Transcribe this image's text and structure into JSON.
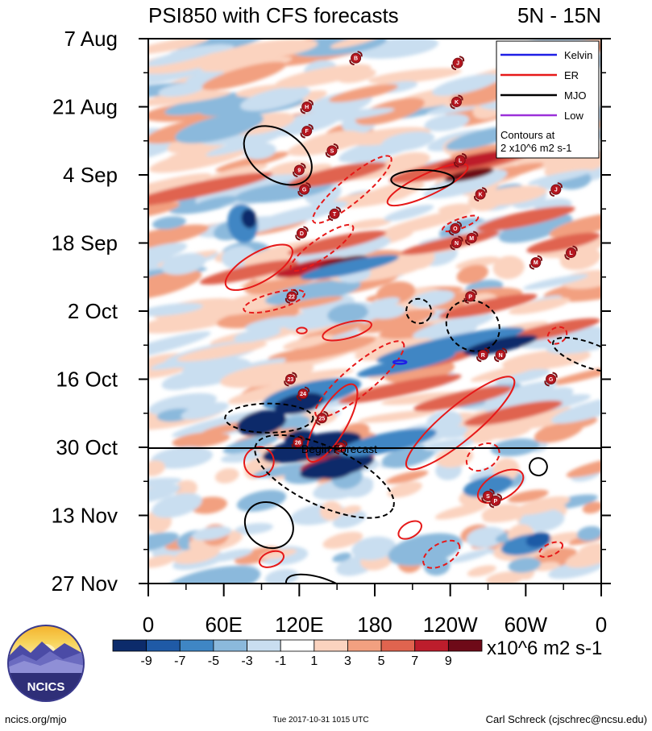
{
  "chart_data": {
    "type": "heatmap",
    "title": "PSI850 with CFS forecasts",
    "region": "5N - 15N",
    "ylabel_ticks": [
      "7 Aug",
      "21 Aug",
      "4 Sep",
      "18 Sep",
      "2 Oct",
      "16 Oct",
      "30 Oct",
      "13 Nov",
      "27 Nov"
    ],
    "xlabel_ticks": [
      "0",
      "60E",
      "120E",
      "180",
      "120W",
      "60W",
      "0"
    ],
    "forecast_label": "Begin Forecast",
    "legend": [
      {
        "label": "Kelvin",
        "color": "#1f1fe6"
      },
      {
        "label": "ER",
        "color": "#e61919"
      },
      {
        "label": "MJO",
        "color": "#000000"
      },
      {
        "label": "Low",
        "color": "#9b30d9"
      }
    ],
    "contour_note_1": "Contours at",
    "contour_note_2": "2 x10^6 m2 s-1",
    "colorbar": {
      "labels": [
        "-9",
        "-7",
        "-5",
        "-3",
        "-1",
        "1",
        "3",
        "5",
        "7",
        "9"
      ],
      "colors": [
        "#0c2b6b",
        "#1f5aa6",
        "#3f86c4",
        "#8bb9dc",
        "#c9def0",
        "#ffffff",
        "#fbd3bf",
        "#f2a080",
        "#e0644f",
        "#bd1d2c",
        "#6e0a18"
      ],
      "units": "x10^6 m2 s-1"
    },
    "storms": [
      {
        "id": "B",
        "lon": 165,
        "day": 4
      },
      {
        "id": "J",
        "lon": 246,
        "day": 5
      },
      {
        "id": "K",
        "lon": 245,
        "day": 13
      },
      {
        "id": "H",
        "lon": 126,
        "day": 14
      },
      {
        "id": "F",
        "lon": 126,
        "day": 19
      },
      {
        "id": "S",
        "lon": 146,
        "day": 23
      },
      {
        "id": "L",
        "lon": 248,
        "day": 25
      },
      {
        "id": "9",
        "lon": 120,
        "day": 27
      },
      {
        "id": "G",
        "lon": 124,
        "day": 31
      },
      {
        "id": "K",
        "lon": 264,
        "day": 32
      },
      {
        "id": "J",
        "lon": 324,
        "day": 31
      },
      {
        "id": "T",
        "lon": 148,
        "day": 36
      },
      {
        "id": "O",
        "lon": 244,
        "day": 39
      },
      {
        "id": "D",
        "lon": 122,
        "day": 40
      },
      {
        "id": "M",
        "lon": 257,
        "day": 41
      },
      {
        "id": "N",
        "lon": 245,
        "day": 42
      },
      {
        "id": "L",
        "lon": 336,
        "day": 44
      },
      {
        "id": "M",
        "lon": 308,
        "day": 46
      },
      {
        "id": "22",
        "lon": 114,
        "day": 53
      },
      {
        "id": "P",
        "lon": 256,
        "day": 53
      },
      {
        "id": "R",
        "lon": 266,
        "day": 65
      },
      {
        "id": "N",
        "lon": 280,
        "day": 65
      },
      {
        "id": "23",
        "lon": 113,
        "day": 70
      },
      {
        "id": "G",
        "lon": 320,
        "day": 70
      },
      {
        "id": "24",
        "lon": 123,
        "day": 73
      },
      {
        "id": "25",
        "lon": 138,
        "day": 78
      },
      {
        "id": "26",
        "lon": 119,
        "day": 83
      },
      {
        "id": "S",
        "lon": 153,
        "day": 84
      },
      {
        "id": "S",
        "lon": 270,
        "day": 94
      },
      {
        "id": "P",
        "lon": 276,
        "day": 95
      }
    ]
  },
  "footer": {
    "logo_text": "NCICS",
    "website": "ncics.org/mjo",
    "timestamp": "Tue 2017-10-31 1015 UTC",
    "author": "Carl Schreck (cjschrec@ncsu.edu)"
  }
}
